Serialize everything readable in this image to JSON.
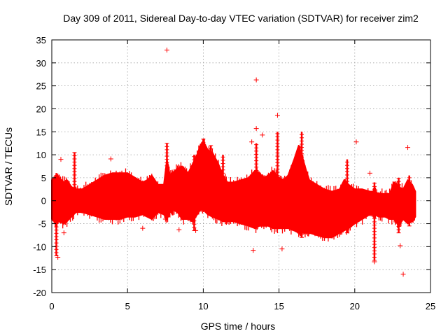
{
  "chart_data": {
    "type": "scatter",
    "title": "Day 309 of 2011, Sidereal Day-to-day VTEC variation (SDTVAR) for receiver zim2",
    "xlabel": "GPS time / hours",
    "ylabel": "SDTVAR / TECUs",
    "xlim": [
      0,
      25
    ],
    "ylim": [
      -20,
      35
    ],
    "xticks": [
      0,
      5,
      10,
      15,
      20,
      25
    ],
    "yticks": [
      -20,
      -15,
      -10,
      -5,
      0,
      5,
      10,
      15,
      20,
      25,
      30,
      35
    ],
    "grid": true,
    "marker": "+",
    "color": "#ff0000",
    "series": [
      {
        "name": "zim2",
        "envelope": {
          "description": "dense band of data points, upper and lower bounds vs GPS hour",
          "x": [
            0.0,
            0.3,
            0.5,
            0.8,
            1.0,
            1.3,
            1.6,
            2.0,
            2.5,
            3.0,
            3.5,
            4.0,
            4.5,
            5.0,
            5.5,
            6.0,
            6.3,
            6.6,
            7.0,
            7.4,
            7.6,
            7.8,
            8.0,
            8.3,
            8.6,
            9.0,
            9.3,
            9.6,
            9.8,
            10.0,
            10.3,
            10.6,
            11.0,
            11.3,
            11.6,
            12.0,
            12.5,
            13.0,
            13.4,
            13.7,
            14.0,
            14.3,
            14.6,
            15.0,
            15.3,
            15.6,
            16.0,
            16.3,
            16.5,
            16.8,
            17.0,
            17.5,
            18.0,
            18.5,
            19.0,
            19.3,
            19.6,
            20.0,
            20.5,
            21.0,
            21.3,
            21.6,
            22.0,
            22.3,
            22.6,
            22.9,
            23.2,
            23.5,
            23.8,
            24.0
          ],
          "upper": [
            4.5,
            5.5,
            5.0,
            4.0,
            4.5,
            3.0,
            2.5,
            2.5,
            3.5,
            4.5,
            5.5,
            6.0,
            6.0,
            6.0,
            5.0,
            4.0,
            4.5,
            5.5,
            3.5,
            3.5,
            9.0,
            5.5,
            6.0,
            7.0,
            7.5,
            6.0,
            8.0,
            10.0,
            12.0,
            13.0,
            11.0,
            10.5,
            8.0,
            5.5,
            4.0,
            4.0,
            4.5,
            5.0,
            6.5,
            6.0,
            5.0,
            5.5,
            6.5,
            5.0,
            4.5,
            5.5,
            9.0,
            12.0,
            10.0,
            6.5,
            4.5,
            3.5,
            2.5,
            2.0,
            2.5,
            4.5,
            3.5,
            2.5,
            2.5,
            2.0,
            2.0,
            1.5,
            1.5,
            1.5,
            4.0,
            3.0,
            2.5,
            4.5,
            3.5,
            2.0
          ],
          "lower": [
            -4.0,
            -5.0,
            -4.5,
            -5.0,
            -4.5,
            -3.5,
            -2.5,
            -2.5,
            -3.0,
            -3.5,
            -4.0,
            -4.0,
            -4.0,
            -3.5,
            -3.5,
            -3.0,
            -3.5,
            -4.0,
            -2.5,
            -3.0,
            -4.0,
            -2.5,
            -2.0,
            -2.5,
            -4.0,
            -4.0,
            -4.5,
            -3.0,
            -2.0,
            -2.0,
            -3.0,
            -3.5,
            -4.0,
            -4.5,
            -4.5,
            -4.5,
            -5.0,
            -5.5,
            -6.0,
            -5.5,
            -5.5,
            -5.5,
            -6.0,
            -6.0,
            -6.0,
            -6.0,
            -6.5,
            -7.0,
            -7.0,
            -7.0,
            -7.0,
            -7.5,
            -8.0,
            -8.0,
            -7.0,
            -6.5,
            -6.0,
            -5.0,
            -4.0,
            -3.0,
            -3.0,
            -3.5,
            -3.5,
            -4.0,
            -4.0,
            -5.5,
            -4.0,
            -5.0,
            -4.5,
            -3.5
          ]
        },
        "spikes": [
          {
            "x": 0.3,
            "y1": -12.0,
            "y2": 6.0
          },
          {
            "x": 1.5,
            "y1": 0.0,
            "y2": 10.5
          },
          {
            "x": 7.6,
            "y1": 2.0,
            "y2": 12.5
          },
          {
            "x": 9.4,
            "y1": -6.5,
            "y2": 10.0
          },
          {
            "x": 10.0,
            "y1": -2.0,
            "y2": 13.5
          },
          {
            "x": 10.5,
            "y1": -2.0,
            "y2": 12.0
          },
          {
            "x": 11.3,
            "y1": -1.0,
            "y2": 10.0
          },
          {
            "x": 13.5,
            "y1": -6.0,
            "y2": 12.5
          },
          {
            "x": 14.9,
            "y1": -5.0,
            "y2": 15.0
          },
          {
            "x": 16.5,
            "y1": -8.0,
            "y2": 15.0
          },
          {
            "x": 19.5,
            "y1": -7.0,
            "y2": 9.0
          },
          {
            "x": 21.3,
            "y1": -13.0,
            "y2": 4.0
          },
          {
            "x": 22.9,
            "y1": -7.0,
            "y2": 5.0
          },
          {
            "x": 23.6,
            "y1": -5.5,
            "y2": 5.5
          }
        ],
        "outliers": [
          {
            "x": 7.6,
            "y": 32.8
          },
          {
            "x": 13.5,
            "y": 26.3
          },
          {
            "x": 14.9,
            "y": 18.6
          },
          {
            "x": 13.5,
            "y": 15.7
          },
          {
            "x": 13.2,
            "y": 12.8
          },
          {
            "x": 13.9,
            "y": 14.3
          },
          {
            "x": 20.1,
            "y": 12.8
          },
          {
            "x": 23.5,
            "y": 11.6
          },
          {
            "x": 3.9,
            "y": 9.1
          },
          {
            "x": 0.6,
            "y": 9.0
          },
          {
            "x": 13.3,
            "y": -10.8
          },
          {
            "x": 15.2,
            "y": -10.5
          },
          {
            "x": 23.0,
            "y": -9.8
          },
          {
            "x": 23.2,
            "y": -16.0
          },
          {
            "x": 0.4,
            "y": -12.3
          },
          {
            "x": 21.3,
            "y": -13.3
          },
          {
            "x": 6.0,
            "y": -6.0
          },
          {
            "x": 7.5,
            "y": -4.0
          },
          {
            "x": 8.4,
            "y": -6.3
          },
          {
            "x": 9.5,
            "y": -6.5
          },
          {
            "x": 21.0,
            "y": 6.0
          },
          {
            "x": 0.8,
            "y": -7.0
          }
        ]
      }
    ]
  }
}
